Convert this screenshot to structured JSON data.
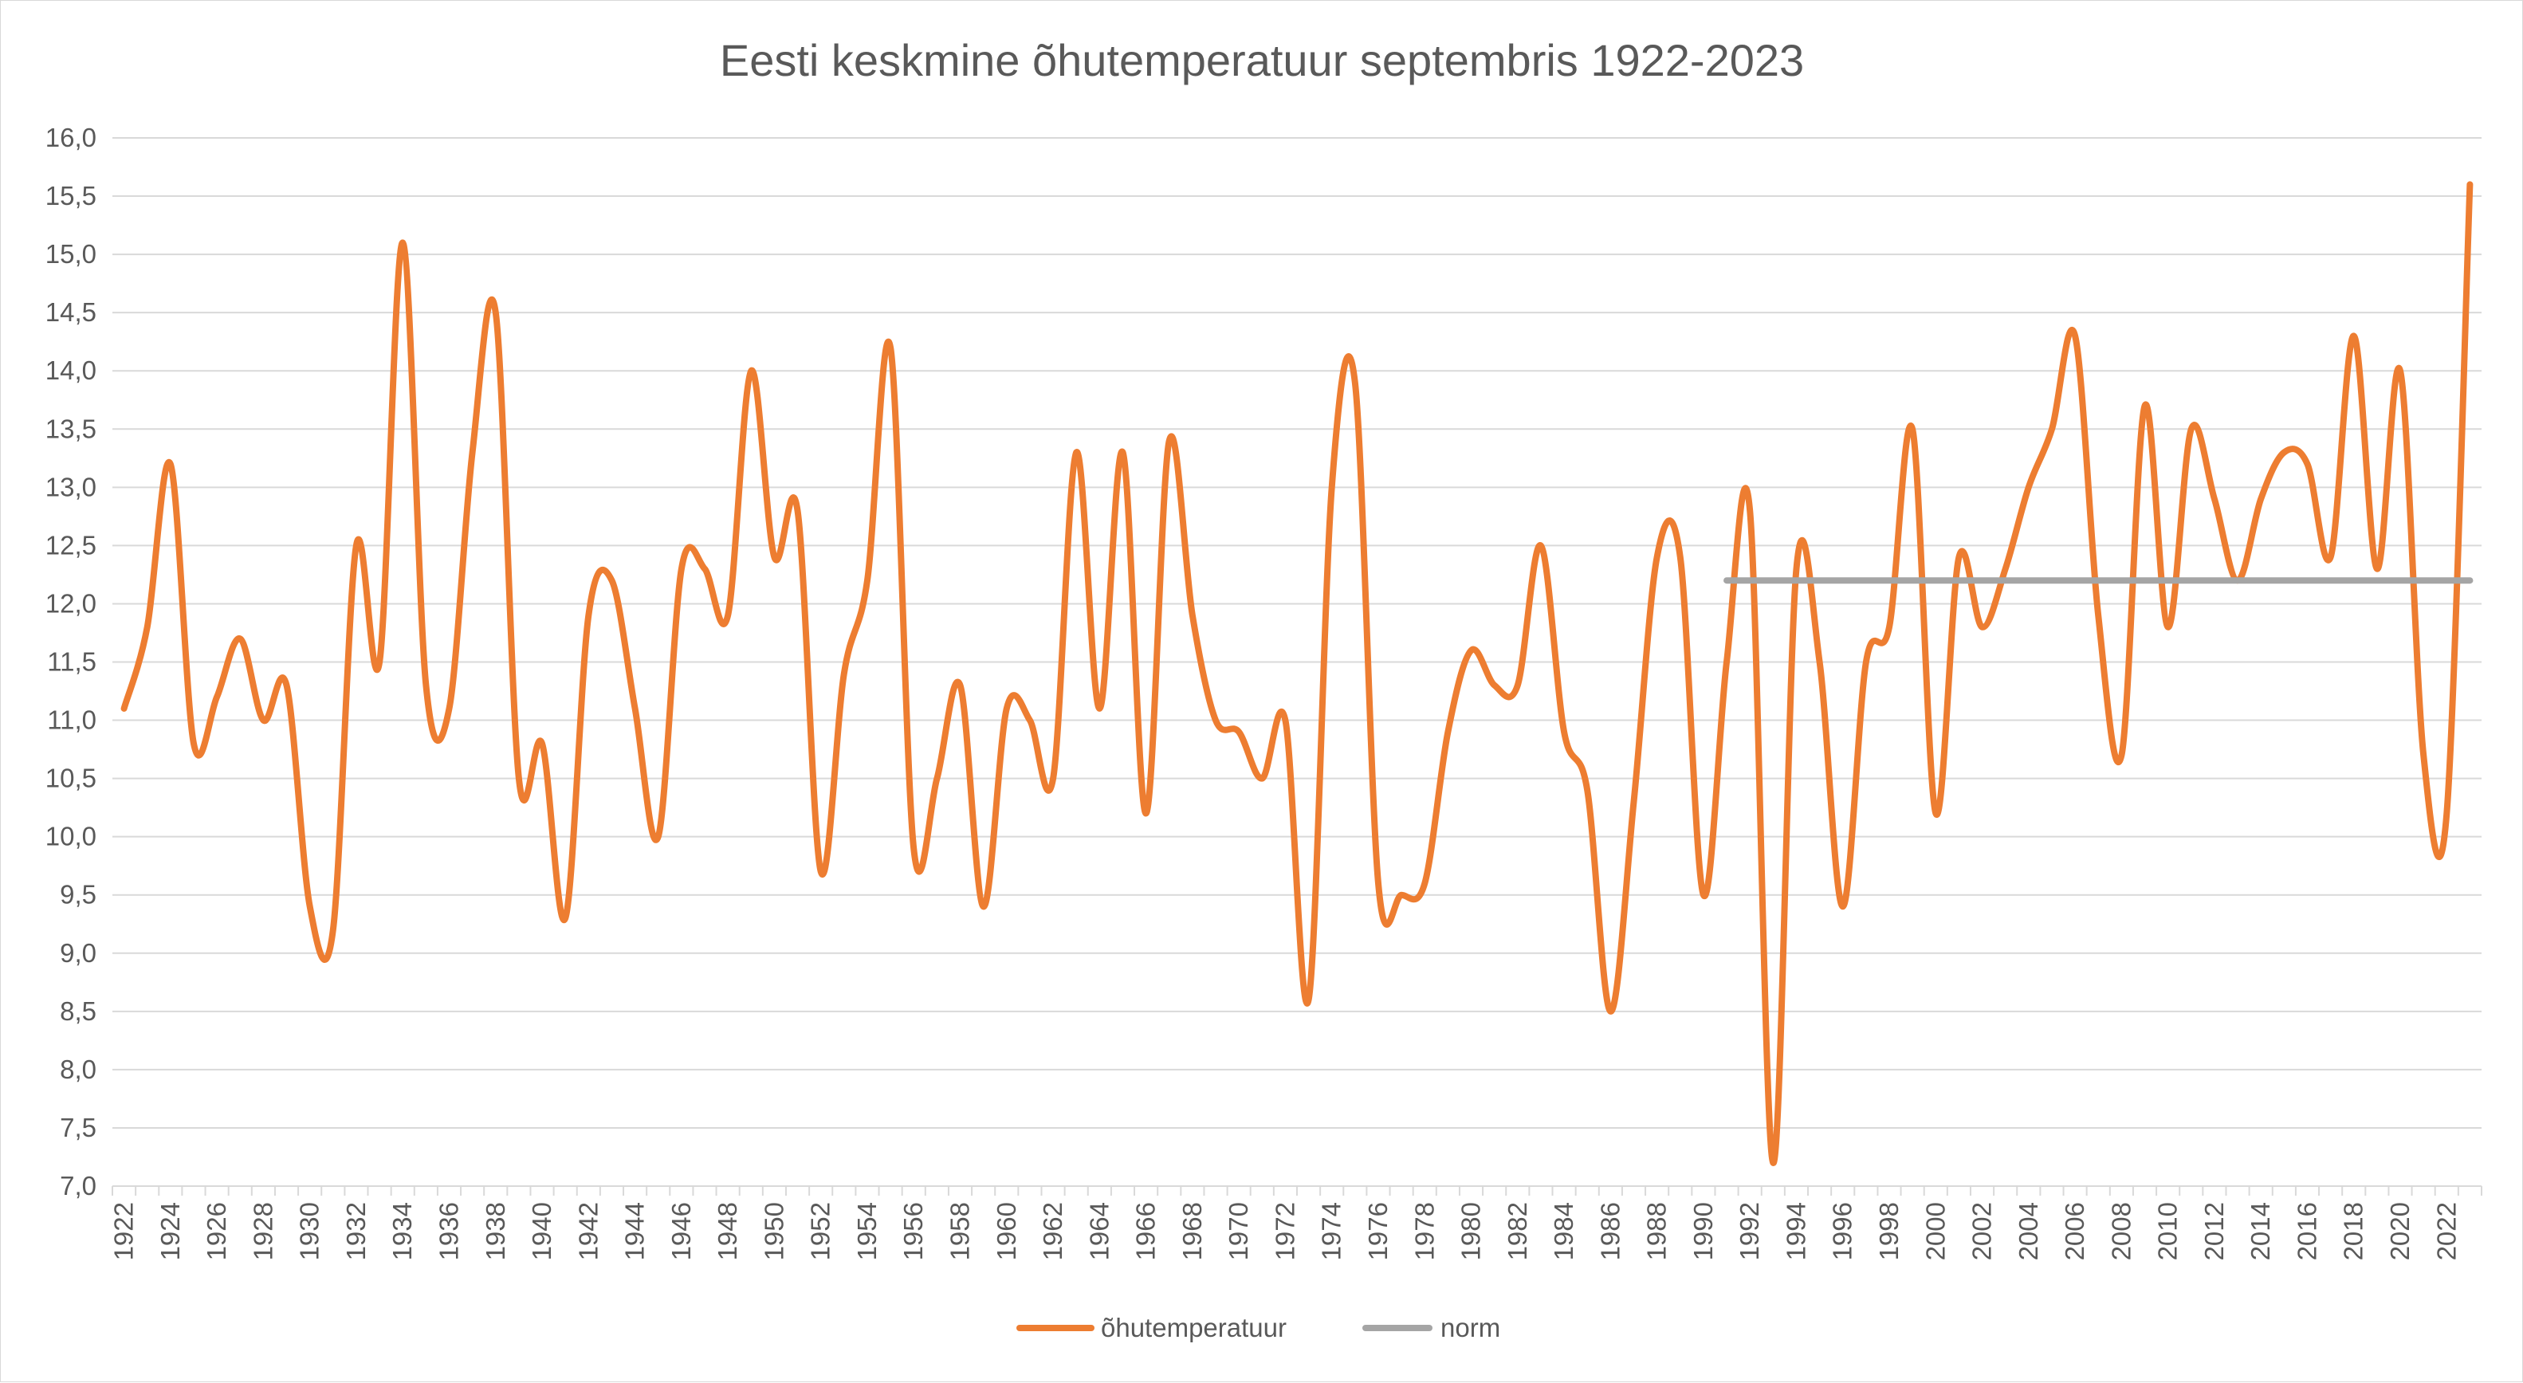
{
  "chart_data": {
    "type": "line",
    "title": "Eesti keskmine õhutemperatuur septembris 1922-2023",
    "xlabel": "",
    "ylabel": "",
    "ylim": [
      7.0,
      16.0
    ],
    "xlim": [
      1922,
      2023
    ],
    "y_ticks": [
      "7,0",
      "7,5",
      "8,0",
      "8,5",
      "9,0",
      "9,5",
      "10,0",
      "10,5",
      "11,0",
      "11,5",
      "12,0",
      "12,5",
      "13,0",
      "13,5",
      "14,0",
      "14,5",
      "15,0",
      "15,5",
      "16,0"
    ],
    "x_ticks": [
      "1922",
      "1924",
      "1926",
      "1928",
      "1930",
      "1932",
      "1934",
      "1936",
      "1938",
      "1940",
      "1942",
      "1944",
      "1946",
      "1948",
      "1950",
      "1952",
      "1954",
      "1956",
      "1958",
      "1960",
      "1962",
      "1964",
      "1966",
      "1968",
      "1970",
      "1972",
      "1974",
      "1976",
      "1978",
      "1980",
      "1982",
      "1984",
      "1986",
      "1988",
      "1990",
      "1992",
      "1994",
      "1996",
      "1998",
      "2000",
      "2002",
      "2004",
      "2006",
      "2008",
      "2010",
      "2012",
      "2014",
      "2016",
      "2018",
      "2020",
      "2022"
    ],
    "grid": true,
    "legend_position": "bottom",
    "colors": {
      "temperature": "#ED7D31",
      "norm": "#A5A5A5",
      "grid": "#D9D9D9",
      "text": "#595959"
    },
    "series": [
      {
        "name": "õhutemperatuur",
        "x": [
          1922,
          1923,
          1924,
          1925,
          1926,
          1927,
          1928,
          1929,
          1930,
          1931,
          1932,
          1933,
          1934,
          1935,
          1936,
          1937,
          1938,
          1939,
          1940,
          1941,
          1942,
          1943,
          1944,
          1945,
          1946,
          1947,
          1948,
          1949,
          1950,
          1951,
          1952,
          1953,
          1954,
          1955,
          1956,
          1957,
          1958,
          1959,
          1960,
          1961,
          1962,
          1963,
          1964,
          1965,
          1966,
          1967,
          1968,
          1969,
          1970,
          1971,
          1972,
          1973,
          1974,
          1975,
          1976,
          1977,
          1978,
          1979,
          1980,
          1981,
          1982,
          1983,
          1984,
          1985,
          1986,
          1987,
          1988,
          1989,
          1990,
          1991,
          1992,
          1993,
          1994,
          1995,
          1996,
          1997,
          1998,
          1999,
          2000,
          2001,
          2002,
          2003,
          2004,
          2005,
          2006,
          2007,
          2008,
          2009,
          2010,
          2011,
          2012,
          2013,
          2014,
          2015,
          2016,
          2017,
          2018,
          2019,
          2020,
          2021,
          2022,
          2023
        ],
        "values": [
          11.1,
          11.8,
          13.2,
          10.8,
          11.2,
          11.7,
          11.0,
          11.3,
          9.4,
          9.2,
          12.5,
          11.5,
          15.1,
          11.3,
          11.1,
          13.3,
          14.5,
          10.5,
          10.8,
          9.3,
          11.9,
          12.2,
          11.1,
          10.0,
          12.3,
          12.3,
          11.9,
          14.0,
          12.4,
          12.8,
          9.7,
          11.4,
          12.2,
          14.2,
          9.9,
          10.5,
          11.3,
          9.4,
          11.1,
          11.0,
          10.5,
          13.3,
          11.1,
          13.3,
          10.2,
          13.4,
          11.9,
          11.0,
          10.9,
          10.5,
          11.0,
          8.6,
          13.0,
          13.9,
          9.6,
          9.5,
          9.6,
          10.9,
          11.6,
          11.3,
          11.3,
          12.5,
          10.9,
          10.4,
          8.5,
          10.3,
          12.4,
          12.4,
          9.5,
          11.5,
          12.8,
          7.2,
          12.3,
          11.5,
          9.4,
          11.5,
          11.8,
          13.5,
          10.2,
          12.4,
          11.8,
          12.3,
          13.0,
          13.5,
          14.3,
          11.9,
          10.7,
          13.7,
          11.8,
          13.5,
          12.9,
          12.2,
          12.9,
          13.3,
          13.2,
          12.4,
          14.3,
          12.3,
          14.0,
          10.7,
          10.2,
          15.6
        ]
      },
      {
        "name": "norm",
        "x": [
          1991,
          2023
        ],
        "values": [
          12.2,
          12.2
        ]
      }
    ]
  }
}
